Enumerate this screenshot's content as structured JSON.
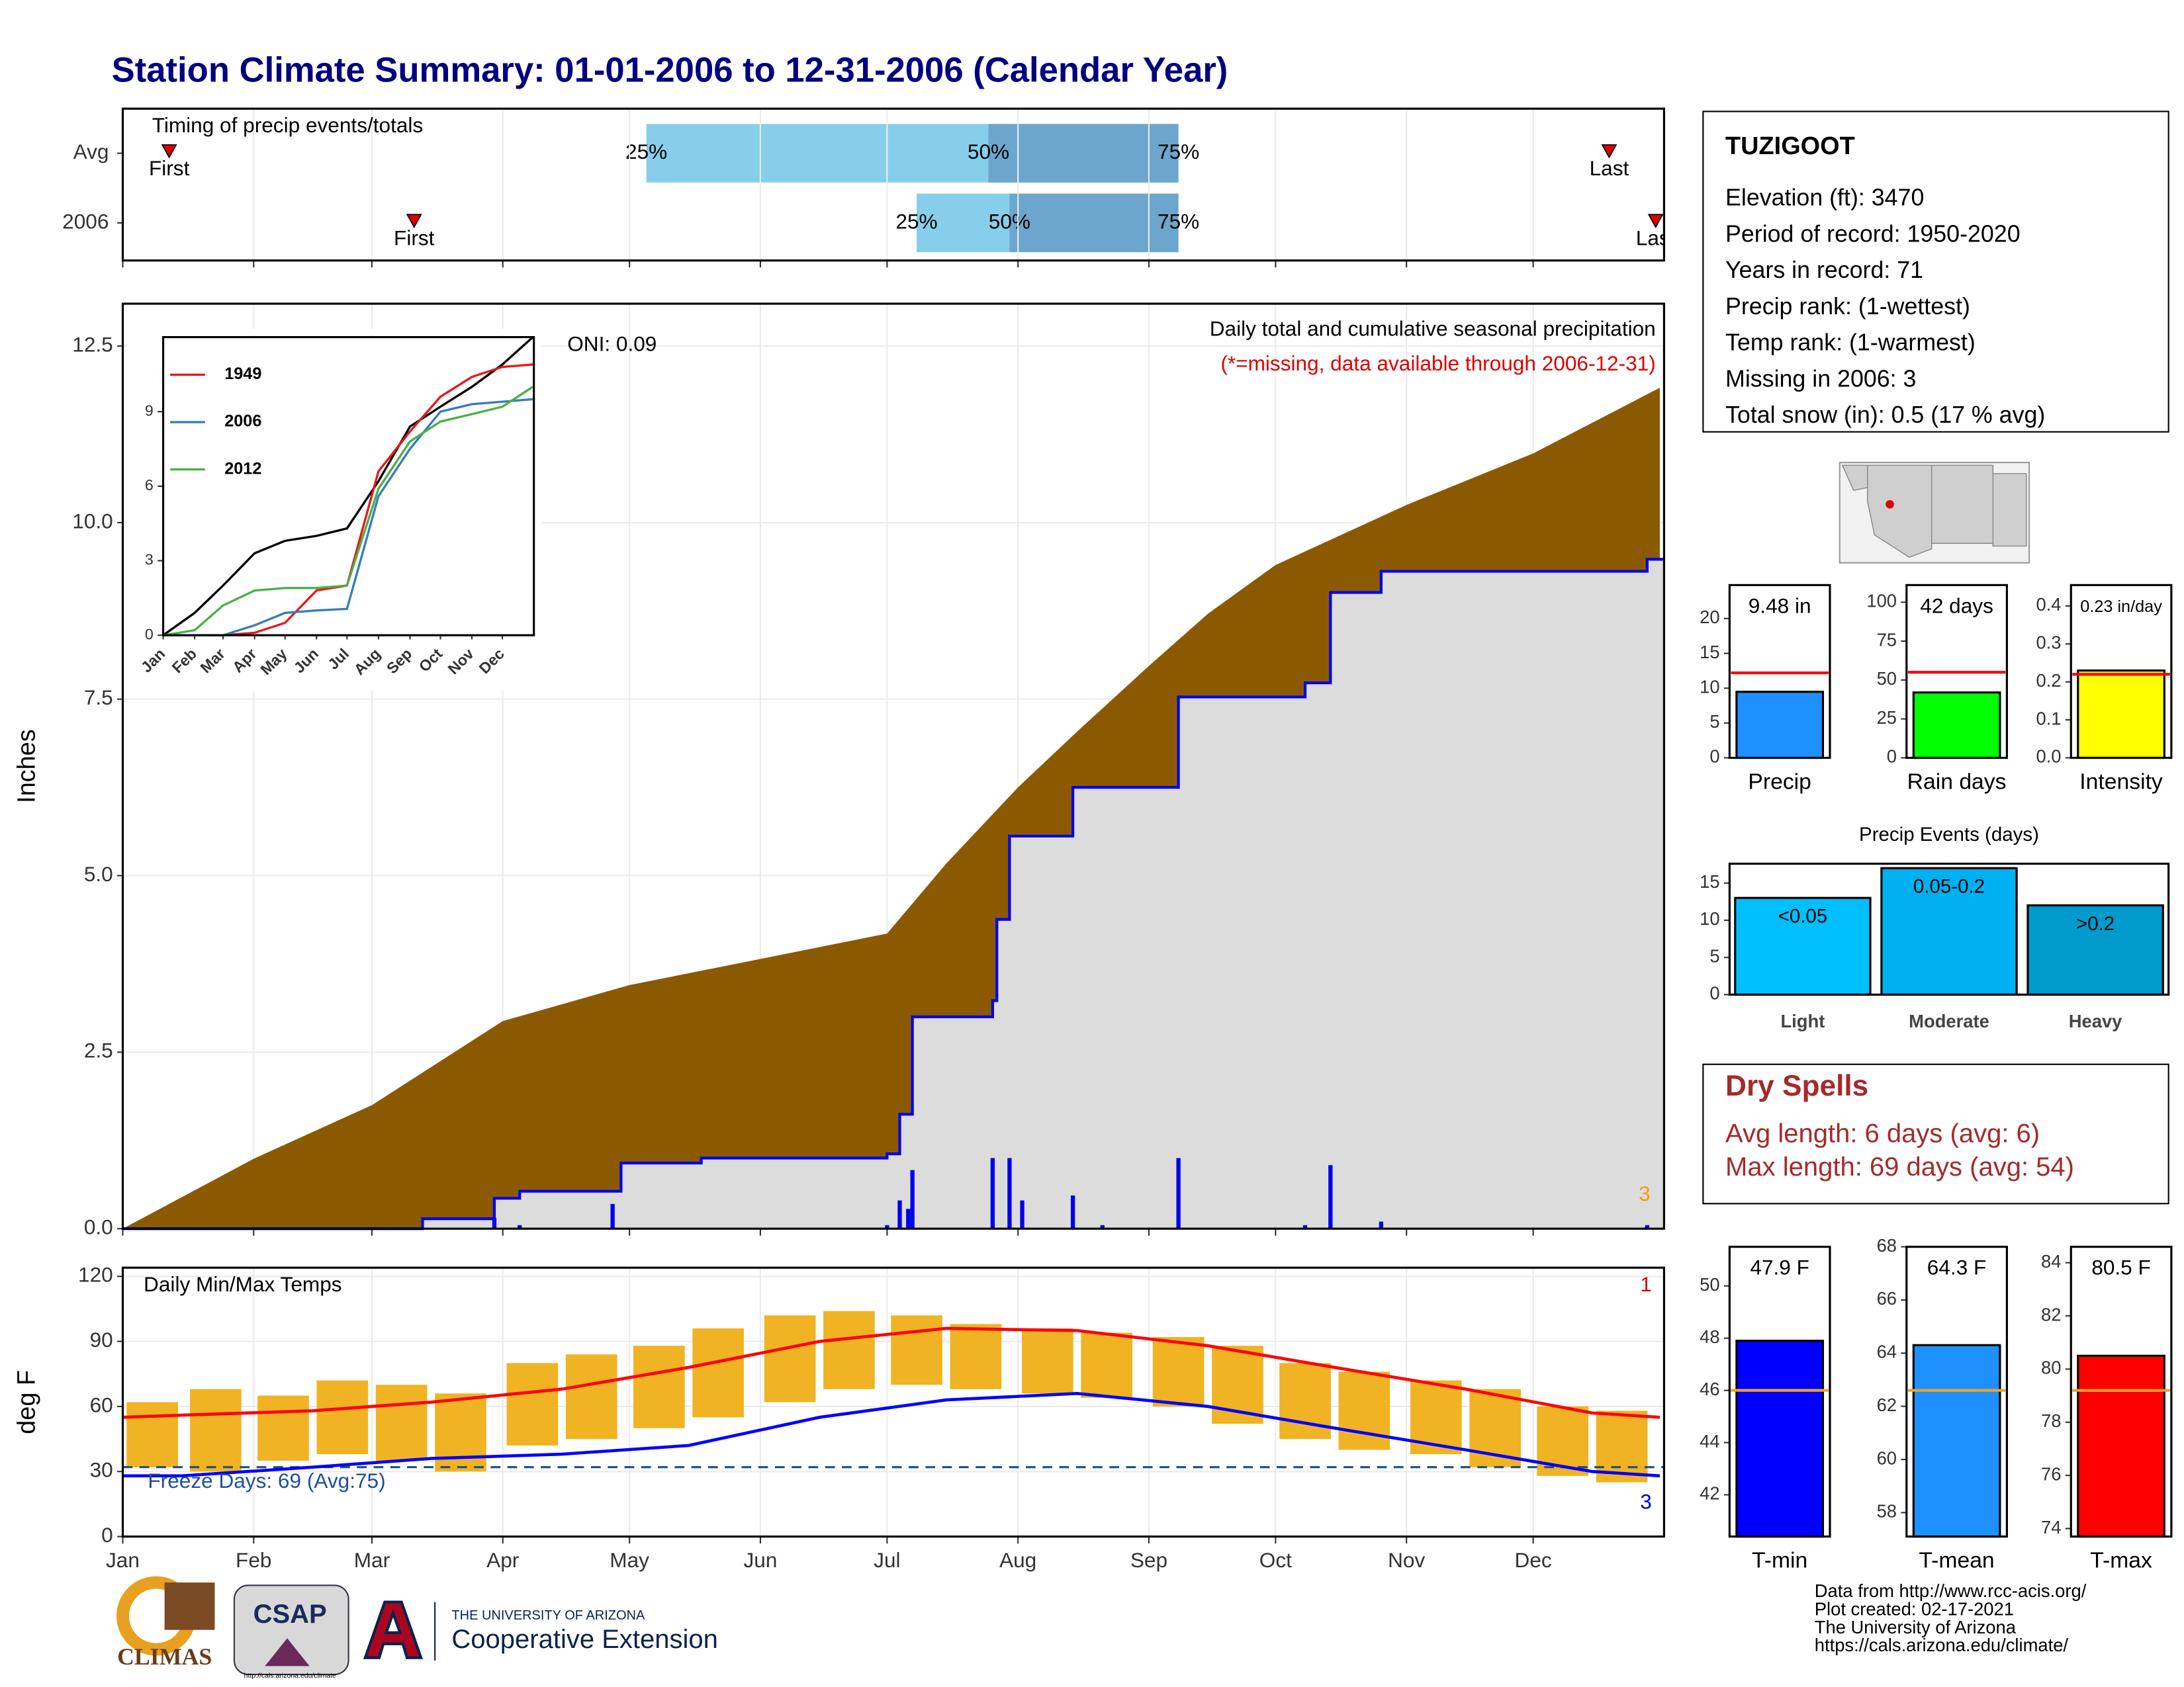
{
  "title": "Station Climate Summary: 01-01-2006 to 12-31-2006 (Calendar Year)",
  "chart_data": [
    {
      "type": "timing",
      "title": "Timing of precip events/totals",
      "categories": [
        "Avg",
        "2006"
      ],
      "first": [
        12,
        70
      ],
      "q25": [
        125,
        189
      ],
      "q50": [
        206,
        211
      ],
      "q75": [
        251,
        251
      ],
      "last": [
        353,
        364
      ],
      "labels": {
        "first": "First",
        "q25": "25%",
        "q50": "50%",
        "q75": "75%",
        "last": "Last"
      },
      "colors": {
        "light": "#87ceeb",
        "dark": "#6ca6cd",
        "marker": "#e00000"
      },
      "xlim": [
        1,
        366
      ],
      "xticks": [
        1,
        32,
        60,
        91,
        121,
        152,
        182,
        213,
        244,
        274,
        305,
        335
      ]
    },
    {
      "type": "area",
      "title": "Daily total and cumulative seasonal precipitation",
      "subtitle": "(*=missing, data available through 2006-12-31)",
      "annotation": "ONI: 0.09",
      "corner_note": 3,
      "y_label": "Inches",
      "xlim": [
        1,
        366
      ],
      "xticks": [
        1,
        32,
        60,
        91,
        121,
        152,
        182,
        213,
        244,
        274,
        305,
        335
      ],
      "ylim": [
        0,
        13.1
      ],
      "yticks": [
        {
          "value": 0,
          "label": "0.0"
        },
        2.5,
        {
          "value": 5,
          "label": "5.0"
        },
        7.5,
        {
          "value": 10,
          "label": "10.0"
        },
        12.5
      ],
      "average": {
        "color": "#8b5a00",
        "x": [
          1,
          32,
          60,
          91,
          121,
          152,
          182,
          196,
          213,
          227,
          244,
          258,
          274,
          305,
          335,
          365
        ],
        "values": [
          0,
          0.99,
          1.75,
          2.94,
          3.45,
          3.82,
          4.18,
          5.17,
          6.25,
          7.04,
          7.97,
          8.71,
          9.4,
          10.25,
          10.98,
          11.91
        ]
      },
      "observed": {
        "color": "#0000ee",
        "fill": "#dcdcdc",
        "x": [
          1,
          72,
          89,
          95,
          119,
          138,
          182,
          185,
          188,
          207,
          208,
          211,
          226,
          251,
          281,
          287,
          299,
          362
        ],
        "values": [
          0,
          0.14,
          0.43,
          0.53,
          0.93,
          1.0,
          1.06,
          1.62,
          3.0,
          3.23,
          4.38,
          5.56,
          6.25,
          7.53,
          7.73,
          9.01,
          9.31,
          9.48
        ]
      },
      "daily": {
        "color": "#0000ee",
        "x": [
          89,
          95,
          117,
          182,
          185,
          187,
          188,
          207,
          211,
          214,
          226,
          233,
          251,
          281,
          287,
          299,
          362
        ],
        "values": [
          0.15,
          0.05,
          0.35,
          0.05,
          0.4,
          0.28,
          0.83,
          1.0,
          1.0,
          0.4,
          0.47,
          0.05,
          1.0,
          0.05,
          0.9,
          0.1,
          0.05
        ]
      }
    },
    {
      "type": "line",
      "xlim": [
        1,
        366
      ],
      "xticks": [
        {
          "value": 1,
          "label": "Jan"
        },
        {
          "value": 32,
          "label": "Feb"
        },
        {
          "value": 60,
          "label": "Mar"
        },
        {
          "value": 91,
          "label": "Apr"
        },
        {
          "value": 121,
          "label": "May"
        },
        {
          "value": 152,
          "label": "Jun"
        },
        {
          "value": 182,
          "label": "Jul"
        },
        {
          "value": 213,
          "label": "Aug"
        },
        {
          "value": 244,
          "label": "Sep"
        },
        {
          "value": 274,
          "label": "Oct"
        },
        {
          "value": 305,
          "label": "Nov"
        },
        {
          "value": 335,
          "label": "Dec"
        }
      ],
      "ylim": [
        0,
        12
      ],
      "yticks": [
        0,
        3,
        6,
        9
      ],
      "average": {
        "color": "#000000",
        "x": [
          1,
          32,
          60,
          91,
          121,
          152,
          182,
          213,
          244,
          274,
          305,
          335,
          365
        ],
        "values": [
          0,
          0.9,
          2.0,
          3.3,
          3.8,
          4.0,
          4.3,
          6.2,
          8.4,
          9.2,
          10.0,
          10.9,
          12.0
        ]
      },
      "series": [
        {
          "name": "1949",
          "color": "#e41a1c",
          "x": [
            1,
            32,
            60,
            91,
            121,
            152,
            182,
            213,
            244,
            274,
            305,
            335,
            365
          ],
          "values": [
            0,
            0,
            0,
            0.1,
            0.5,
            1.8,
            2.0,
            6.6,
            8.2,
            9.6,
            10.4,
            10.8,
            10.9
          ]
        },
        {
          "name": "2006",
          "color": "#377eb8",
          "x": [
            1,
            32,
            60,
            91,
            121,
            152,
            182,
            213,
            244,
            274,
            305,
            335,
            365
          ],
          "values": [
            0,
            0,
            0,
            0.4,
            0.9,
            1.0,
            1.06,
            5.6,
            7.5,
            9.0,
            9.3,
            9.4,
            9.5
          ]
        },
        {
          "name": "2012",
          "color": "#4daf4a",
          "x": [
            1,
            32,
            60,
            91,
            121,
            152,
            182,
            213,
            244,
            274,
            305,
            335,
            365
          ],
          "values": [
            0,
            0.2,
            1.2,
            1.8,
            1.9,
            1.9,
            2.0,
            5.9,
            7.8,
            8.6,
            8.9,
            9.2,
            10.0
          ]
        }
      ]
    },
    {
      "type": "range",
      "title": "Daily Min/Max Temps",
      "y_label": "deg F",
      "annotation": "Freeze Days: 69 (Avg:75)",
      "high_note": 1,
      "low_note": 3,
      "freeze_threshold": 32,
      "xlim": [
        1,
        366
      ],
      "xticks": [
        {
          "value": 1,
          "label": "Jan"
        },
        {
          "value": 32,
          "label": "Feb"
        },
        {
          "value": 60,
          "label": "Mar"
        },
        {
          "value": 91,
          "label": "Apr"
        },
        {
          "value": 121,
          "label": "May"
        },
        {
          "value": 152,
          "label": "Jun"
        },
        {
          "value": 182,
          "label": "Jul"
        },
        {
          "value": 213,
          "label": "Aug"
        },
        {
          "value": 244,
          "label": "Sep"
        },
        {
          "value": 274,
          "label": "Oct"
        },
        {
          "value": 305,
          "label": "Nov"
        },
        {
          "value": 335,
          "label": "Dec"
        }
      ],
      "ylim": [
        0,
        124
      ],
      "yticks": [
        0,
        30,
        60,
        90,
        120
      ],
      "daily": {
        "color": "#f0b323",
        "x": [
          8,
          23,
          39,
          53,
          67,
          81,
          98,
          112,
          128,
          142,
          159,
          173,
          189,
          203,
          220,
          234,
          251,
          265,
          281,
          295,
          312,
          326,
          342,
          356
        ],
        "min": [
          32,
          30,
          35,
          38,
          35,
          30,
          42,
          45,
          50,
          55,
          62,
          68,
          70,
          68,
          66,
          64,
          60,
          52,
          45,
          40,
          38,
          32,
          28,
          25
        ],
        "max": [
          62,
          68,
          65,
          72,
          70,
          66,
          80,
          84,
          88,
          96,
          102,
          104,
          102,
          98,
          96,
          94,
          92,
          88,
          80,
          76,
          72,
          68,
          60,
          58
        ]
      },
      "avg_max": {
        "color": "#ff0000",
        "x": [
          1,
          15,
          46,
          74,
          105,
          135,
          166,
          196,
          227,
          258,
          288,
          319,
          349,
          365
        ],
        "values": [
          55,
          56,
          58,
          62,
          68,
          78,
          90,
          96,
          95,
          88,
          78,
          68,
          57,
          55
        ]
      },
      "avg_min": {
        "color": "#0000ff",
        "x": [
          1,
          15,
          46,
          74,
          105,
          135,
          166,
          196,
          227,
          258,
          288,
          319,
          349,
          365
        ],
        "values": [
          28,
          28,
          32,
          36,
          38,
          42,
          55,
          63,
          66,
          60,
          50,
          40,
          30,
          28
        ]
      }
    },
    {
      "type": "gauge",
      "label": "Precip",
      "value": 9.48,
      "value_label": "9.48 in",
      "average": 12.2,
      "color": "#1e90ff",
      "avg_color": "#ff0000",
      "ylim": [
        0,
        24.8
      ],
      "yticks": [
        0,
        5,
        10,
        15,
        20
      ]
    },
    {
      "type": "gauge",
      "label": "Rain days",
      "value": 42,
      "value_label": "42 days",
      "average": 55,
      "color": "#00ff00",
      "avg_color": "#ff0000",
      "ylim": [
        0,
        111
      ],
      "yticks": [
        0,
        25,
        50,
        75,
        100
      ]
    },
    {
      "type": "gauge",
      "label": "Intensity",
      "value": 0.23,
      "value_label": "0.23 in/day",
      "average": 0.22,
      "color": "#ffff00",
      "avg_color": "#ff0000",
      "ylim": [
        0,
        0.455
      ],
      "yticks": [
        {
          "value": 0,
          "label": "0.0"
        },
        0.1,
        0.2,
        0.3,
        0.4
      ]
    },
    {
      "type": "bar",
      "title": "Precip Events (days)",
      "categories": [
        "Light",
        "Moderate",
        "Heavy"
      ],
      "bin_labels": [
        "<0.05",
        "0.05-0.2",
        ">0.2"
      ],
      "values": [
        13,
        17,
        12
      ],
      "colors": [
        "#00bfff",
        "#00b0f0",
        "#009acd"
      ],
      "ylim": [
        0,
        17.6
      ],
      "yticks": [
        0,
        5,
        10,
        15
      ]
    },
    {
      "type": "gauge",
      "label": "T-min",
      "value": 47.9,
      "value_label": "47.9 F",
      "average": 46.0,
      "color": "#0000ff",
      "avg_color": "#f0a030",
      "ylim": [
        40.4,
        51.5
      ],
      "yticks": [
        42,
        44,
        46,
        48,
        50
      ]
    },
    {
      "type": "gauge",
      "label": "T-mean",
      "value": 64.3,
      "value_label": "64.3 F",
      "average": 62.6,
      "color": "#1e90ff",
      "avg_color": "#f0a030",
      "ylim": [
        57.1,
        68.0
      ],
      "yticks": [
        58,
        60,
        62,
        64,
        66,
        68
      ]
    },
    {
      "type": "gauge",
      "label": "T-max",
      "value": 80.5,
      "value_label": "80.5 F",
      "average": 79.2,
      "color": "#ff0000",
      "avg_color": "#f0a030",
      "ylim": [
        73.7,
        84.6
      ],
      "yticks": [
        74,
        76,
        78,
        80,
        82,
        84
      ]
    }
  ],
  "station": {
    "name": "TUZIGOOT",
    "lines": [
      "Elevation (ft): 3470",
      "Period of record: 1950-2020",
      "Years in record: 71",
      "Precip rank:  (1-wettest)",
      "Temp rank:  (1-warmest)",
      "Missing in 2006: 3",
      "Total snow (in): 0.5 (17 % avg)"
    ]
  },
  "dry_spells": {
    "title": "Dry Spells",
    "lines": [
      "Avg length: 6 days (avg: 6)",
      "Max length: 69 days (avg: 54)"
    ]
  },
  "footer": {
    "climas": "CLIMAS",
    "csap": "CSAP",
    "csap_url": "http://cals.arizona.edu/climate",
    "university": "THE UNIVERSITY OF ARIZONA",
    "extension": "Cooperative Extension",
    "credits": [
      "Data from http://www.rcc-acis.org/",
      "Plot created: 02-17-2021",
      "The University of Arizona",
      "https://cals.arizona.edu/climate/"
    ]
  }
}
